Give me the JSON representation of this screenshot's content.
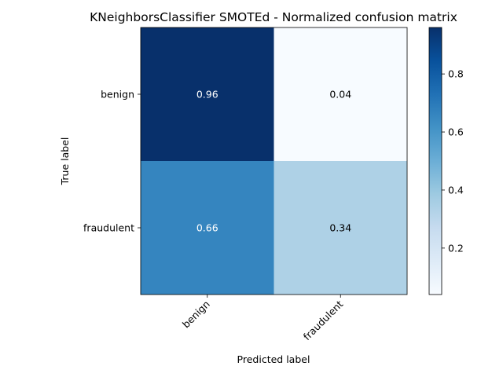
{
  "chart_data": {
    "type": "heatmap",
    "title": "KNeighborsClassifier SMOTEd - Normalized confusion matrix",
    "xlabel": "Predicted label",
    "ylabel": "True label",
    "x_categories": [
      "benign",
      "fraudulent"
    ],
    "y_categories": [
      "benign",
      "fraudulent"
    ],
    "values": [
      [
        0.96,
        0.04
      ],
      [
        0.66,
        0.34
      ]
    ],
    "value_labels": [
      [
        "0.96",
        "0.04"
      ],
      [
        "0.66",
        "0.34"
      ]
    ],
    "colormap": "Blues",
    "colorbar": {
      "range": [
        0.04,
        0.96
      ],
      "ticks": [
        0.2,
        0.4,
        0.6,
        0.8
      ],
      "tick_labels": [
        "0.2",
        "0.4",
        "0.6",
        "0.8"
      ]
    },
    "colors": {
      "low": "#f7fbff",
      "high": "#08306b",
      "text_dark": "#000000",
      "text_light": "#ffffff"
    },
    "grid": false,
    "legend": "colorbar-right"
  }
}
